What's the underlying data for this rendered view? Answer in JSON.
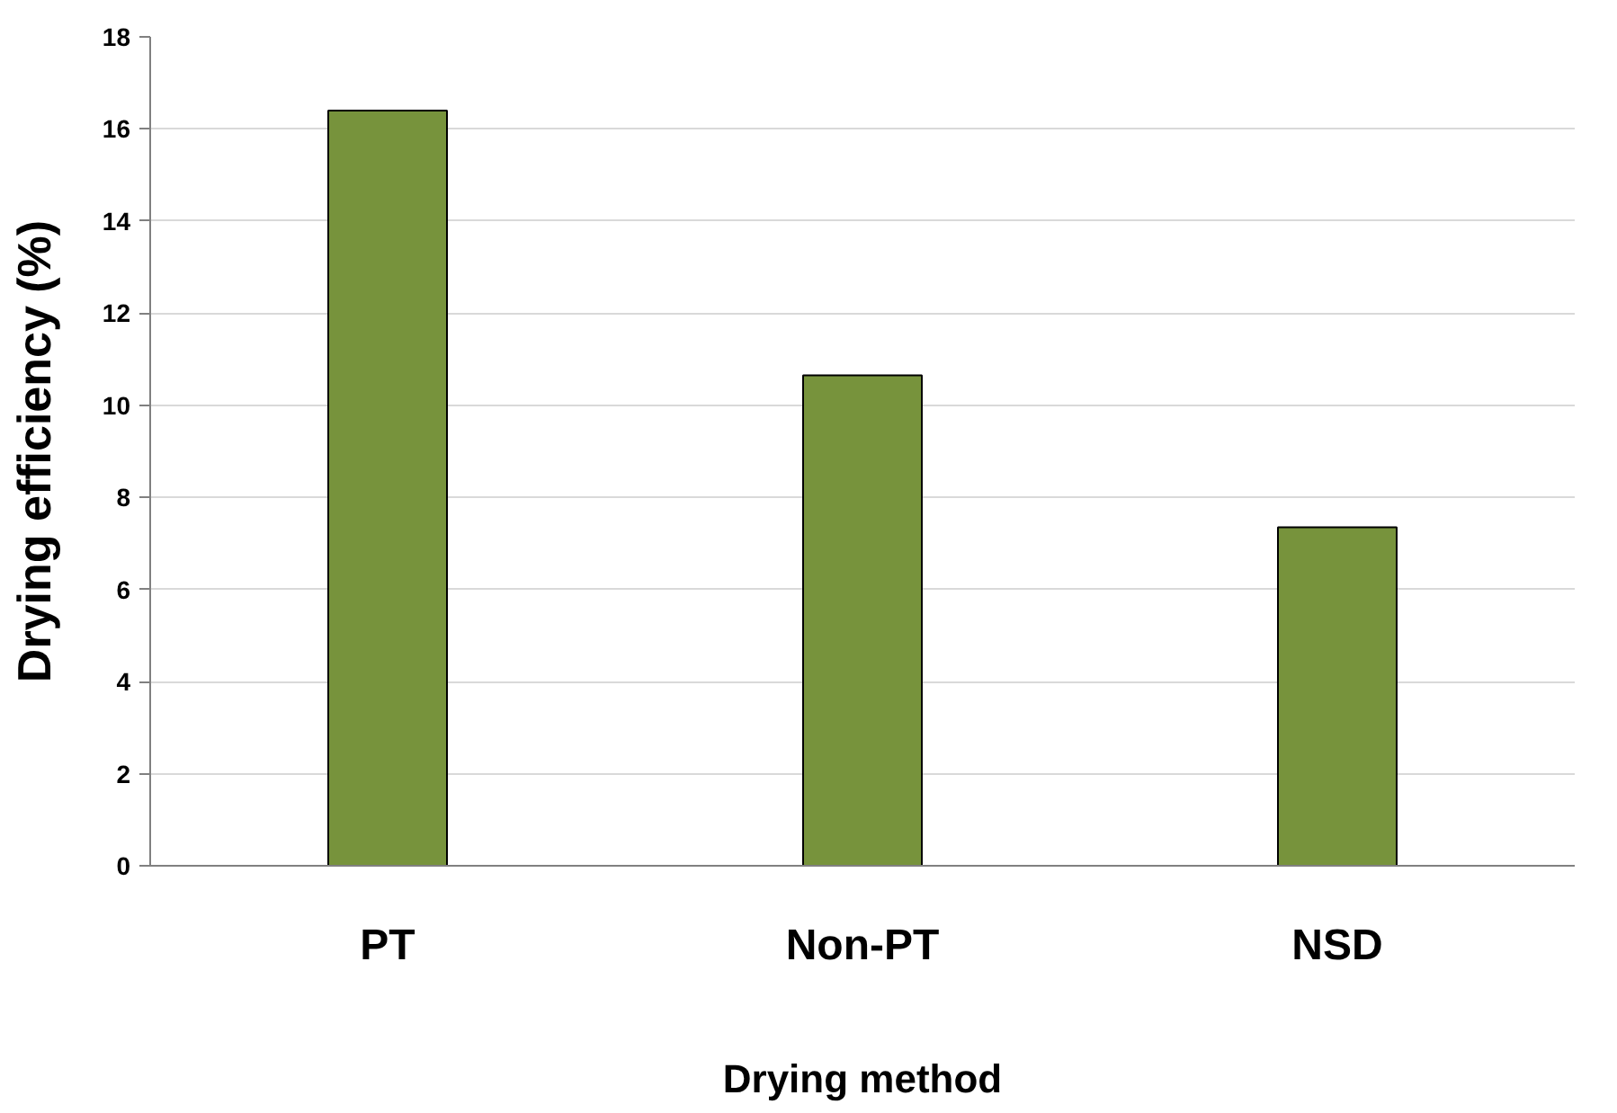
{
  "chart_data": {
    "type": "bar",
    "xlabel": "Drying method",
    "ylabel": "Drying efficiency (%)",
    "categories": [
      "PT",
      "Non-PT",
      "NSD"
    ],
    "values": [
      16.4,
      10.65,
      7.35
    ],
    "color": "#77933c",
    "ylim": [
      0,
      18
    ],
    "yticks": [
      0,
      2,
      4,
      6,
      8,
      10,
      12,
      14,
      16,
      18
    ],
    "grid": "y"
  }
}
